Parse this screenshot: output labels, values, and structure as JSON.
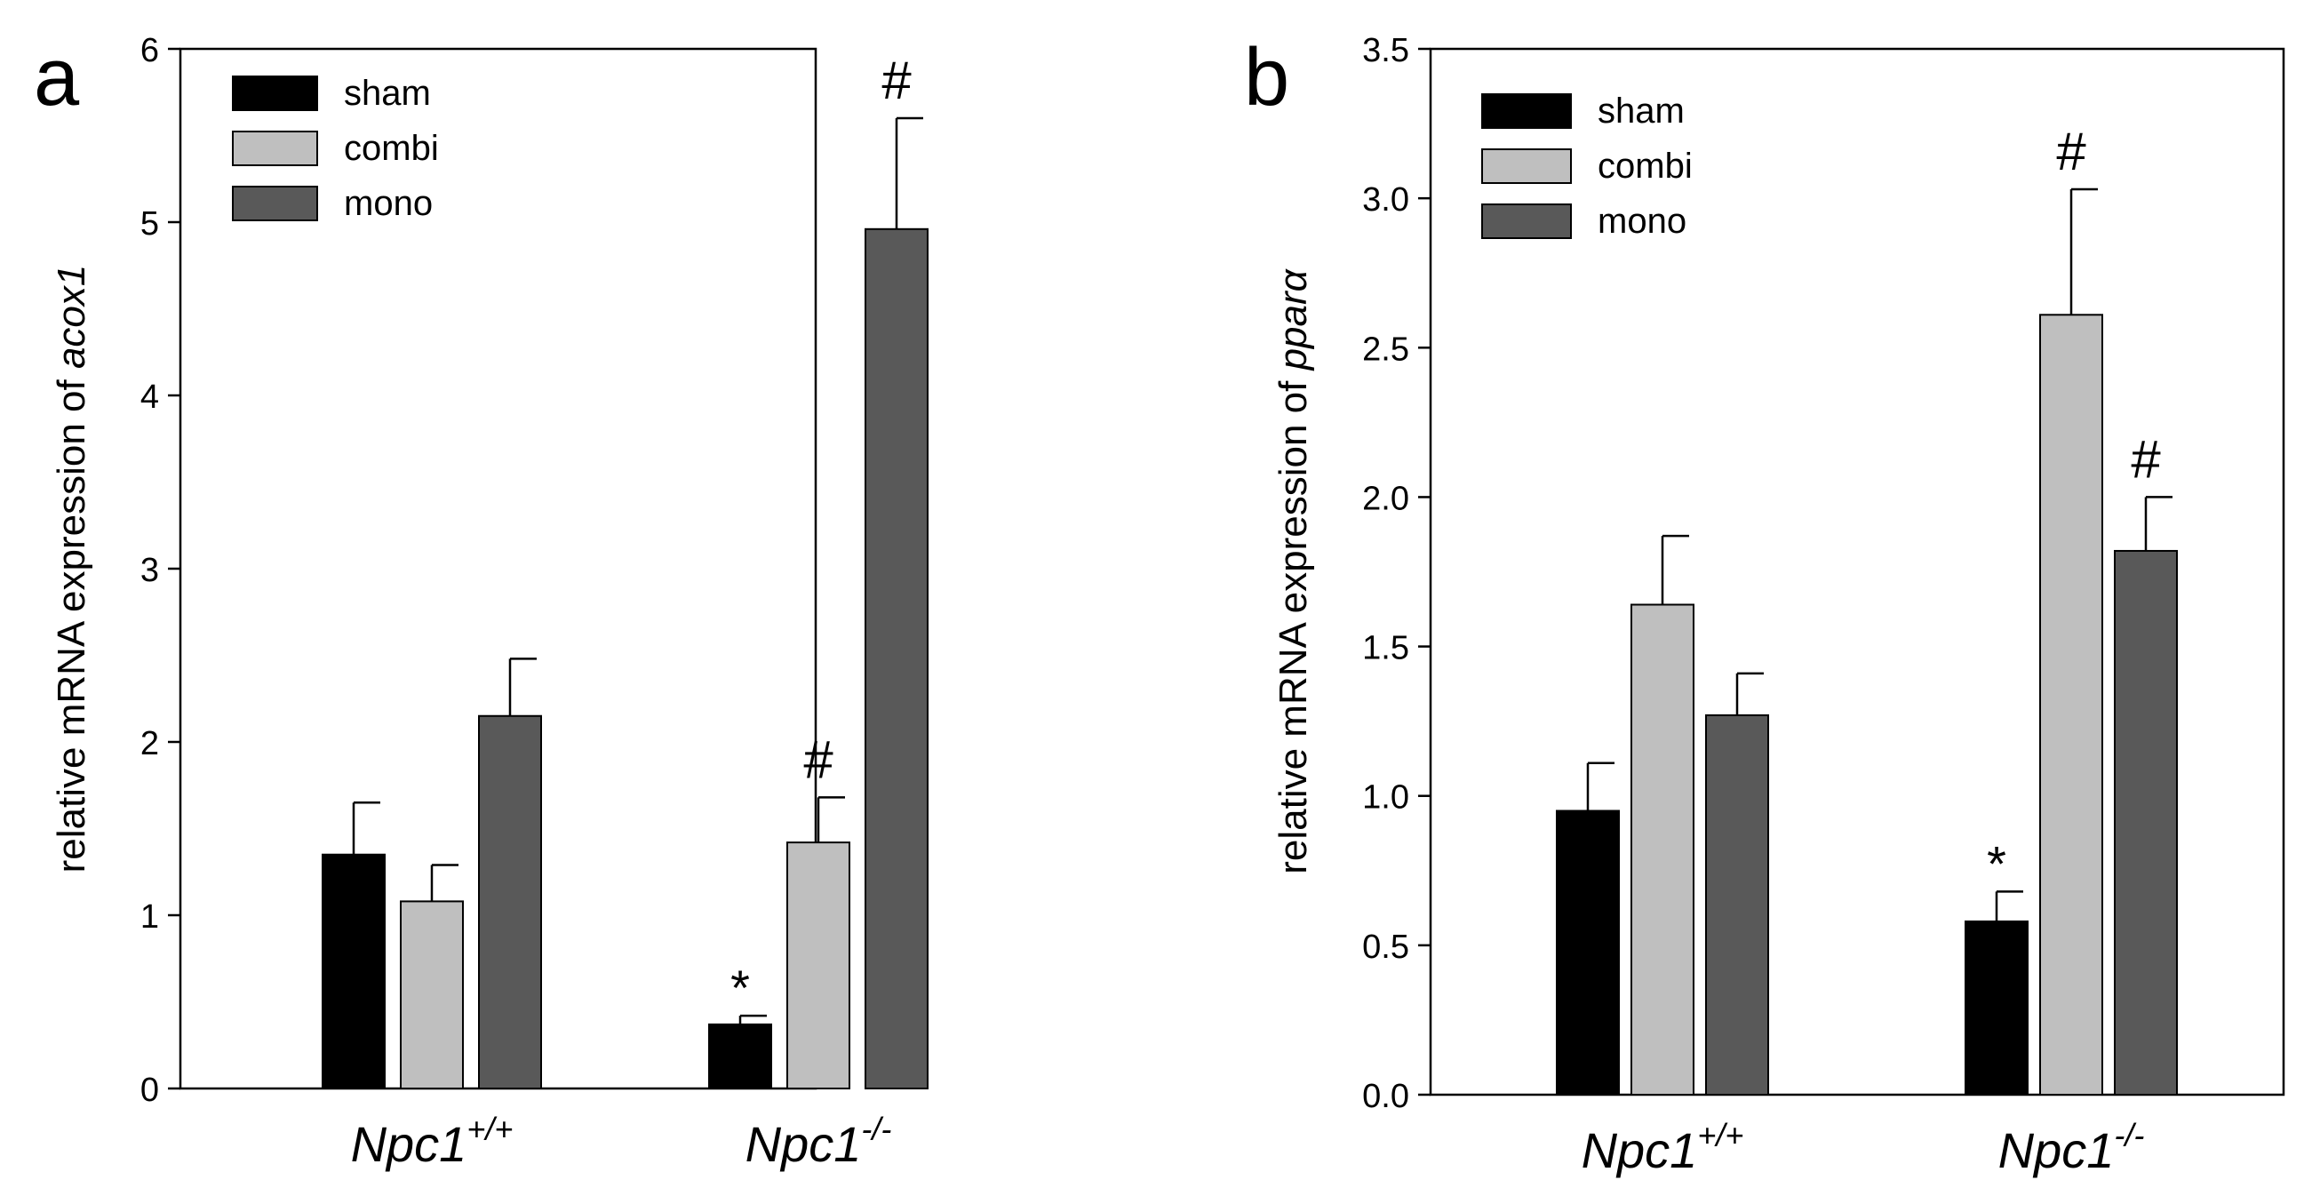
{
  "chart_data": [
    {
      "type": "bar",
      "panel_label": "a",
      "ylabel_prefix": "relative mRNA expression of ",
      "ylabel_gene": "acox1",
      "ylim": [
        0,
        6
      ],
      "yticks": [
        "0",
        "1",
        "2",
        "3",
        "4",
        "5",
        "6"
      ],
      "categories": [
        {
          "base": "Npc1",
          "sup": "+/+"
        },
        {
          "base": "Npc1",
          "sup": "-/-"
        }
      ],
      "series": [
        {
          "name": "sham",
          "color": "#000000",
          "values": [
            1.35,
            0.37
          ],
          "errors": [
            0.3,
            0.05
          ],
          "marks": [
            "",
            "*"
          ]
        },
        {
          "name": "combi",
          "color": "#bfbfbf",
          "values": [
            1.08,
            1.42
          ],
          "errors": [
            0.21,
            0.26
          ],
          "marks": [
            "",
            "#"
          ]
        },
        {
          "name": "mono",
          "color": "#595959",
          "values": [
            2.15,
            4.96
          ],
          "errors": [
            0.33,
            0.64
          ],
          "marks": [
            "",
            "#"
          ]
        }
      ]
    },
    {
      "type": "bar",
      "panel_label": "b",
      "ylabel_prefix": "relative mRNA expression of ",
      "ylabel_gene": "pparα",
      "ylim": [
        0,
        3.5
      ],
      "yticks": [
        "0.0",
        "0.5",
        "1.0",
        "1.5",
        "2.0",
        "2.5",
        "3.0",
        "3.5"
      ],
      "categories": [
        {
          "base": "Npc1",
          "sup": "+/+"
        },
        {
          "base": "Npc1",
          "sup": "-/-"
        }
      ],
      "series": [
        {
          "name": "sham",
          "color": "#000000",
          "values": [
            0.95,
            0.58
          ],
          "errors": [
            0.16,
            0.1
          ],
          "marks": [
            "",
            "*"
          ]
        },
        {
          "name": "combi",
          "color": "#bfbfbf",
          "values": [
            1.64,
            2.61
          ],
          "errors": [
            0.23,
            0.42
          ],
          "marks": [
            "",
            "#"
          ]
        },
        {
          "name": "mono",
          "color": "#595959",
          "values": [
            1.27,
            1.82
          ],
          "errors": [
            0.14,
            0.18
          ],
          "marks": [
            "",
            "#"
          ]
        }
      ]
    }
  ]
}
